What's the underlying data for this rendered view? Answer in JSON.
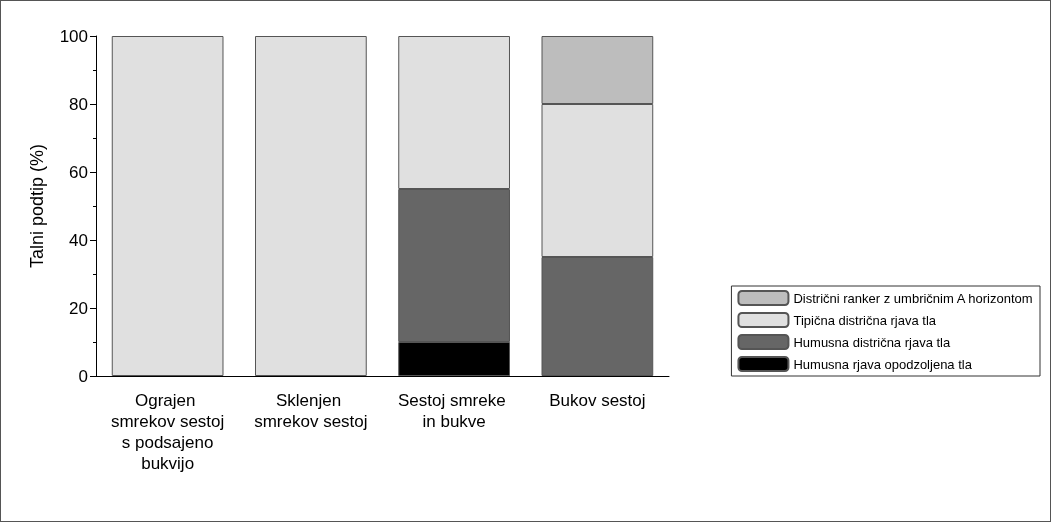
{
  "chart_data": {
    "type": "bar",
    "stacked": true,
    "ylabel": "Talni podtip (%)",
    "categories": [
      "Ograjen smrekov sestoj s podsajeno bukvijo",
      "Sklenjen smrekov sestoj",
      "Sestoj smreke in bukve",
      "Bukov sestoj"
    ],
    "series": [
      {
        "name": "Humusna rjava opodzoljena tla",
        "color": "#000000",
        "values": [
          0,
          0,
          10,
          0
        ]
      },
      {
        "name": "Humusna distrična rjava tla",
        "color": "#666666",
        "values": [
          0,
          0,
          45,
          35
        ]
      },
      {
        "name": "Tipična distrična rjava tla",
        "color": "#e0e0e0",
        "values": [
          100,
          100,
          45,
          45
        ]
      },
      {
        "name": "Distrični ranker z umbričnim A horizontom",
        "color": "#bdbdbd",
        "values": [
          0,
          0,
          0,
          20
        ]
      }
    ],
    "ylim": [
      0,
      100
    ],
    "yticks": [
      0,
      20,
      40,
      60,
      80,
      100
    ],
    "grid": false,
    "legend": "bottom right"
  }
}
